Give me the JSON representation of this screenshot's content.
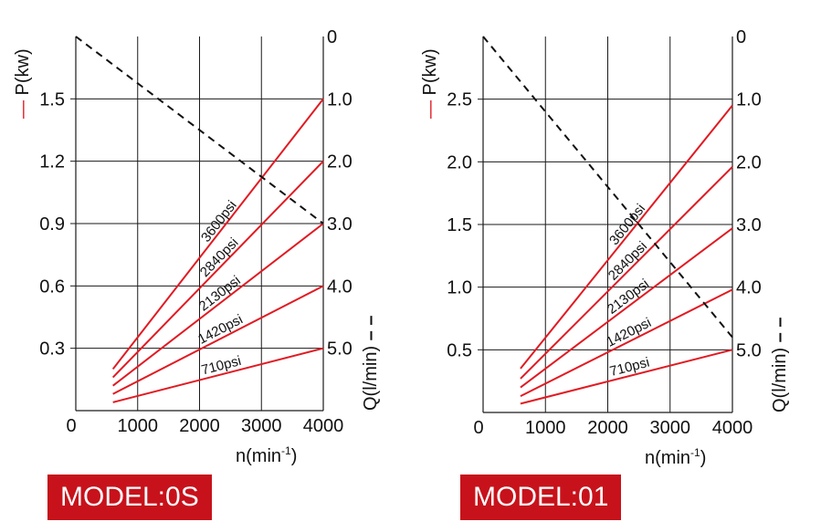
{
  "chart_data": [
    {
      "type": "line",
      "model_label": "MODEL:0S",
      "xlabel": "n(min",
      "xlabel_sup": "-1",
      "ylabel_left": "P(kw)",
      "ylabel_left_marker": "—",
      "ylabel_right": "Q(l/min)",
      "ylabel_right_marker": "– –",
      "x_ticks": [
        "0",
        "1000",
        "2000",
        "3000",
        "4000"
      ],
      "xlim": [
        0,
        4000
      ],
      "left_ticks": [
        {
          "value": 0.3,
          "label": "0.3"
        },
        {
          "value": 0.6,
          "label": "0.6"
        },
        {
          "value": 0.9,
          "label": "0.9"
        },
        {
          "value": 1.2,
          "label": "1.2"
        },
        {
          "value": 1.5,
          "label": "1.5"
        }
      ],
      "left_ylim": [
        0,
        1.8
      ],
      "right_ticks": [
        "0",
        "1.0",
        "2.0",
        "3.0",
        "4.0",
        "5.0"
      ],
      "right_ylim": [
        0,
        6
      ],
      "right_inverted": true,
      "grid": true,
      "series": [
        {
          "name": "710psi",
          "x": [
            600,
            4000
          ],
          "y": [
            0.04,
            0.3
          ]
        },
        {
          "name": "1420psi",
          "x": [
            600,
            4000
          ],
          "y": [
            0.08,
            0.6
          ]
        },
        {
          "name": "2130psi",
          "x": [
            600,
            4000
          ],
          "y": [
            0.12,
            0.9
          ]
        },
        {
          "name": "2840psi",
          "x": [
            600,
            4000
          ],
          "y": [
            0.16,
            1.2
          ]
        },
        {
          "name": "3600psi",
          "x": [
            600,
            4000
          ],
          "y": [
            0.2,
            1.5
          ]
        }
      ],
      "flow": {
        "x": [
          0,
          4000
        ],
        "q": [
          0,
          3.0
        ]
      }
    },
    {
      "type": "line",
      "model_label": "MODEL:01",
      "xlabel": "n(min",
      "xlabel_sup": "-1",
      "ylabel_left": "P(kw)",
      "ylabel_left_marker": "—",
      "ylabel_right": "Q(l/min)",
      "ylabel_right_marker": "– –",
      "x_ticks": [
        "0",
        "1000",
        "2000",
        "3000",
        "4000"
      ],
      "xlim": [
        0,
        4000
      ],
      "left_ticks": [
        {
          "value": 0.5,
          "label": "0.5"
        },
        {
          "value": 1.0,
          "label": "1.0"
        },
        {
          "value": 1.5,
          "label": "1.5"
        },
        {
          "value": 2.0,
          "label": "2.0"
        },
        {
          "value": 2.5,
          "label": "2.5"
        }
      ],
      "left_ylim": [
        0,
        3.0
      ],
      "right_ticks": [
        "0",
        "1.0",
        "2.0",
        "3.0",
        "4.0",
        "5.0"
      ],
      "right_ylim": [
        0,
        6
      ],
      "right_inverted": true,
      "grid": true,
      "series": [
        {
          "name": "710psi",
          "x": [
            600,
            4000
          ],
          "y": [
            0.07,
            0.5
          ]
        },
        {
          "name": "1420psi",
          "x": [
            600,
            4000
          ],
          "y": [
            0.13,
            0.98
          ]
        },
        {
          "name": "2130psi",
          "x": [
            600,
            4000
          ],
          "y": [
            0.2,
            1.47
          ]
        },
        {
          "name": "2840psi",
          "x": [
            600,
            4000
          ],
          "y": [
            0.27,
            1.96
          ]
        },
        {
          "name": "3600psi",
          "x": [
            600,
            4000
          ],
          "y": [
            0.35,
            2.45
          ]
        }
      ],
      "flow": {
        "x": [
          0,
          4000
        ],
        "q": [
          0,
          4.8
        ]
      }
    }
  ],
  "colors": {
    "power_line": "#e11a22",
    "flow_line": "#111111",
    "badge": "#c7121b",
    "badge_text": "#ffffff"
  }
}
